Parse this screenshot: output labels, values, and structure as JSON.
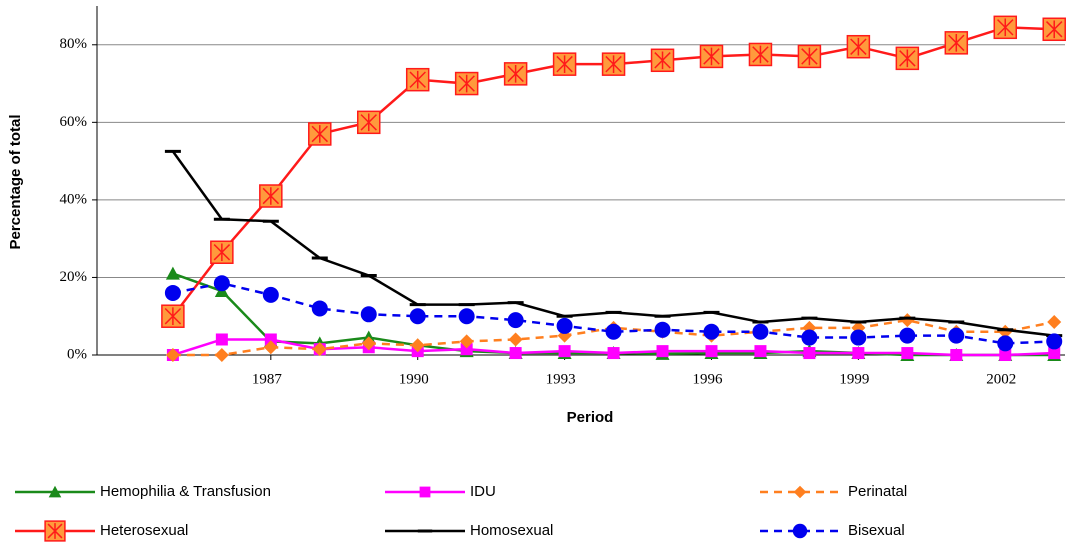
{
  "chart_data": {
    "type": "line",
    "x_label": "Period",
    "y_label": "Percentage of total",
    "x": [
      1985,
      1986,
      1987,
      1988,
      1989,
      1990,
      1991,
      1992,
      1993,
      1994,
      1995,
      1996,
      1997,
      1998,
      1999,
      2000,
      2001,
      2002,
      2003
    ],
    "xlim": [
      1983.45,
      2003.22
    ],
    "xticks": [
      1987,
      1990,
      1993,
      1996,
      1999,
      2002
    ],
    "ylim": [
      0,
      90
    ],
    "yticks": [
      {
        "value": 0,
        "label": "0%"
      },
      {
        "value": 20,
        "label": "20%"
      },
      {
        "value": 40,
        "label": "40%"
      },
      {
        "value": 60,
        "label": "60%"
      },
      {
        "value": 80,
        "label": "80%"
      }
    ],
    "grid": true,
    "series": [
      {
        "name": "Hemophilia & Transfusion",
        "color": "#1a8a1a",
        "marker": "triangle",
        "dash": false,
        "values": [
          21,
          16.5,
          3.5,
          3,
          4.5,
          2.5,
          1,
          0.5,
          0.5,
          0.5,
          0.3,
          0.5,
          0.5,
          1,
          0.5,
          0,
          0,
          0,
          0
        ]
      },
      {
        "name": "IDU",
        "color": "#ff00ff",
        "marker": "square",
        "dash": false,
        "values": [
          0,
          4,
          4,
          1.5,
          2,
          1,
          1.5,
          0.5,
          1,
          0.5,
          1,
          1,
          1,
          0.5,
          0.5,
          0.5,
          0,
          0,
          0.5
        ]
      },
      {
        "name": "Perinatal",
        "color": "#ff7f1f",
        "marker": "diamond",
        "dash": true,
        "values": [
          0,
          0,
          2,
          1.5,
          3,
          2.5,
          3.5,
          4,
          5,
          7,
          6,
          5,
          6,
          7,
          7,
          9,
          6,
          6,
          8.5
        ]
      },
      {
        "name": "Heterosexual",
        "color": "#ff1a1a",
        "marker": "boxstar",
        "dash": false,
        "values": [
          10,
          26.5,
          41,
          57,
          60,
          71,
          70,
          72.5,
          75,
          75,
          76,
          77,
          77.5,
          77,
          79.5,
          76.5,
          80.5,
          84.5,
          84
        ]
      },
      {
        "name": "Homosexual",
        "color": "#000000",
        "marker": "dash",
        "dash": false,
        "values": [
          52.5,
          35,
          34.5,
          25,
          20.5,
          13,
          13,
          13.5,
          10,
          11,
          10,
          11,
          8.5,
          9.5,
          8.5,
          9.5,
          8.5,
          6.5,
          5
        ]
      },
      {
        "name": "Bisexual",
        "color": "#0000ee",
        "marker": "circle",
        "dash": true,
        "values": [
          16,
          18.5,
          15.5,
          12,
          10.5,
          10,
          10,
          9,
          7.5,
          6,
          6.5,
          6,
          6,
          4.5,
          4.5,
          5,
          5,
          3,
          3.5
        ]
      }
    ]
  }
}
